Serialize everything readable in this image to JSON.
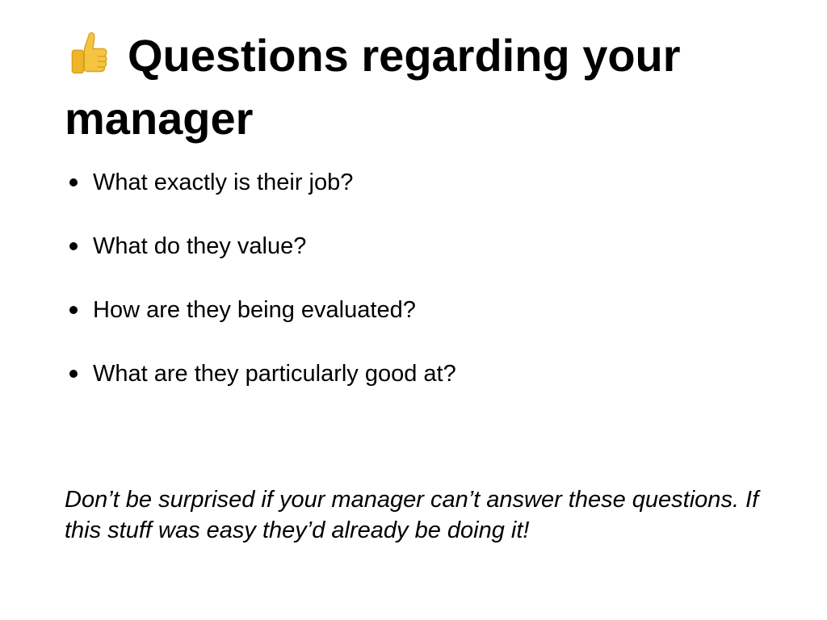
{
  "slide": {
    "title_icon": "thumbs-up-icon",
    "title": "Questions regarding your manager",
    "bullets": [
      "What exactly is their job?",
      "What do they value?",
      "How are they being evaluated?",
      "What are they particularly good at?"
    ],
    "note": "Don’t be surprised if your manager can’t answer these questions.  If this stuff was easy they’d already be doing it!"
  },
  "colors": {
    "background": "#ffffff",
    "text": "#000000",
    "icon_fill": "#f5c542",
    "icon_shadow": "#d9a21b"
  }
}
